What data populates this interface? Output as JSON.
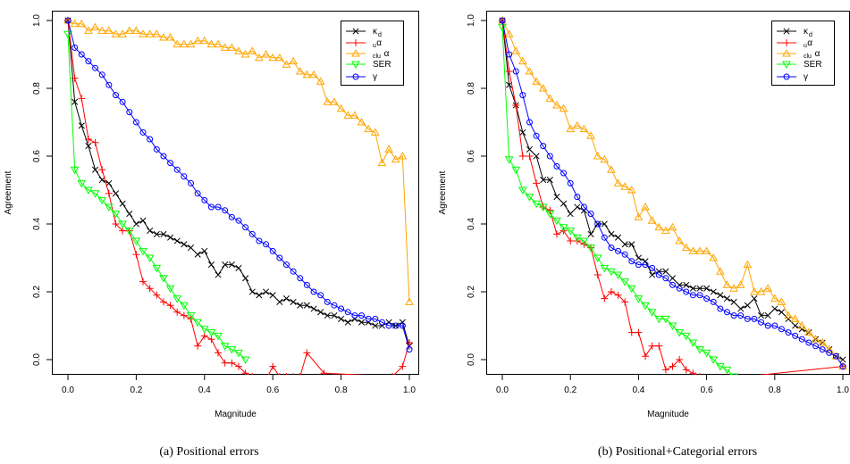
{
  "chart_data": [
    {
      "type": "line",
      "caption": "(a)  Positional errors",
      "xlabel": "Magnitude",
      "ylabel": "Agreement",
      "xlim": [
        0,
        1
      ],
      "ylim": [
        0,
        1
      ],
      "xticks": [
        "0.0",
        "0.2",
        "0.4",
        "0.6",
        "0.8",
        "1.0"
      ],
      "yticks": [
        "0.0",
        "0.2",
        "0.4",
        "0.6",
        "0.8",
        "1.0"
      ],
      "legend_position": "top-right",
      "series": [
        {
          "key": "kd",
          "color": "#000000",
          "marker": "x",
          "x": [
            0.0,
            0.02,
            0.04,
            0.06,
            0.08,
            0.1,
            0.12,
            0.14,
            0.16,
            0.18,
            0.2,
            0.22,
            0.24,
            0.26,
            0.28,
            0.3,
            0.32,
            0.34,
            0.36,
            0.38,
            0.4,
            0.42,
            0.44,
            0.46,
            0.48,
            0.5,
            0.52,
            0.54,
            0.56,
            0.58,
            0.6,
            0.62,
            0.64,
            0.66,
            0.68,
            0.7,
            0.72,
            0.74,
            0.76,
            0.78,
            0.8,
            0.82,
            0.84,
            0.86,
            0.88,
            0.9,
            0.92,
            0.94,
            0.96,
            0.98,
            1.0
          ],
          "y": [
            1.0,
            0.76,
            0.69,
            0.63,
            0.56,
            0.53,
            0.52,
            0.49,
            0.46,
            0.43,
            0.4,
            0.41,
            0.38,
            0.37,
            0.37,
            0.36,
            0.35,
            0.34,
            0.33,
            0.31,
            0.32,
            0.28,
            0.25,
            0.28,
            0.28,
            0.27,
            0.24,
            0.2,
            0.19,
            0.2,
            0.19,
            0.17,
            0.18,
            0.17,
            0.16,
            0.16,
            0.15,
            0.14,
            0.13,
            0.13,
            0.12,
            0.11,
            0.12,
            0.11,
            0.11,
            0.1,
            0.1,
            0.11,
            0.1,
            0.11,
            0.04
          ]
        },
        {
          "key": "ua",
          "color": "#ff0000",
          "marker": "+",
          "x": [
            0.0,
            0.02,
            0.04,
            0.06,
            0.08,
            0.1,
            0.12,
            0.14,
            0.16,
            0.18,
            0.2,
            0.22,
            0.24,
            0.26,
            0.28,
            0.3,
            0.32,
            0.34,
            0.36,
            0.38,
            0.4,
            0.42,
            0.44,
            0.46,
            0.48,
            0.5,
            0.52,
            0.54,
            0.56,
            0.58,
            0.6,
            0.62,
            0.64,
            0.66,
            0.68,
            0.7,
            0.75,
            0.95,
            0.98,
            1.0
          ],
          "y": [
            1.0,
            0.83,
            0.77,
            0.65,
            0.64,
            0.56,
            0.49,
            0.4,
            0.38,
            0.38,
            0.31,
            0.23,
            0.21,
            0.19,
            0.17,
            0.16,
            0.14,
            0.13,
            0.12,
            0.04,
            0.07,
            0.06,
            0.02,
            -0.01,
            -0.01,
            -0.02,
            -0.04,
            -0.05,
            -0.06,
            -0.06,
            -0.02,
            -0.05,
            -0.05,
            -0.05,
            -0.05,
            0.02,
            -0.04,
            -0.05,
            -0.02,
            0.05
          ]
        },
        {
          "key": "clua",
          "color": "#ffa500",
          "marker": "triangle-up",
          "x": [
            0.0,
            0.02,
            0.04,
            0.06,
            0.08,
            0.1,
            0.12,
            0.14,
            0.16,
            0.18,
            0.2,
            0.22,
            0.24,
            0.26,
            0.28,
            0.3,
            0.32,
            0.34,
            0.36,
            0.38,
            0.4,
            0.42,
            0.44,
            0.46,
            0.48,
            0.5,
            0.52,
            0.54,
            0.56,
            0.58,
            0.6,
            0.62,
            0.64,
            0.66,
            0.68,
            0.7,
            0.72,
            0.74,
            0.76,
            0.78,
            0.8,
            0.82,
            0.84,
            0.86,
            0.88,
            0.9,
            0.92,
            0.94,
            0.96,
            0.98,
            1.0
          ],
          "y": [
            1.0,
            0.99,
            0.99,
            0.97,
            0.98,
            0.97,
            0.97,
            0.96,
            0.96,
            0.97,
            0.97,
            0.96,
            0.96,
            0.96,
            0.95,
            0.95,
            0.93,
            0.93,
            0.93,
            0.94,
            0.94,
            0.93,
            0.93,
            0.92,
            0.92,
            0.91,
            0.9,
            0.91,
            0.89,
            0.9,
            0.89,
            0.89,
            0.87,
            0.88,
            0.85,
            0.84,
            0.84,
            0.82,
            0.76,
            0.76,
            0.74,
            0.72,
            0.72,
            0.7,
            0.68,
            0.67,
            0.58,
            0.62,
            0.59,
            0.6,
            0.17
          ]
        },
        {
          "key": "ser",
          "color": "#00ff00",
          "marker": "triangle-down",
          "x": [
            0.0,
            0.02,
            0.04,
            0.06,
            0.08,
            0.1,
            0.12,
            0.14,
            0.16,
            0.18,
            0.2,
            0.22,
            0.24,
            0.26,
            0.28,
            0.3,
            0.32,
            0.34,
            0.36,
            0.38,
            0.4,
            0.42,
            0.44,
            0.46,
            0.48,
            0.5,
            0.52
          ],
          "y": [
            0.96,
            0.56,
            0.52,
            0.5,
            0.49,
            0.47,
            0.45,
            0.43,
            0.4,
            0.38,
            0.35,
            0.32,
            0.3,
            0.27,
            0.24,
            0.21,
            0.18,
            0.16,
            0.13,
            0.11,
            0.09,
            0.08,
            0.07,
            0.04,
            0.03,
            0.02,
            0.0
          ]
        },
        {
          "key": "gamma",
          "color": "#0000ff",
          "marker": "circle",
          "x": [
            0.0,
            0.02,
            0.04,
            0.06,
            0.08,
            0.1,
            0.12,
            0.14,
            0.16,
            0.18,
            0.2,
            0.22,
            0.24,
            0.26,
            0.28,
            0.3,
            0.32,
            0.34,
            0.36,
            0.38,
            0.4,
            0.42,
            0.44,
            0.46,
            0.48,
            0.5,
            0.52,
            0.54,
            0.56,
            0.58,
            0.6,
            0.62,
            0.64,
            0.66,
            0.68,
            0.7,
            0.72,
            0.74,
            0.76,
            0.78,
            0.8,
            0.82,
            0.84,
            0.86,
            0.88,
            0.9,
            0.92,
            0.94,
            0.96,
            0.98,
            1.0
          ],
          "y": [
            1.0,
            0.92,
            0.9,
            0.88,
            0.86,
            0.84,
            0.81,
            0.78,
            0.76,
            0.73,
            0.7,
            0.67,
            0.65,
            0.62,
            0.6,
            0.58,
            0.56,
            0.54,
            0.52,
            0.49,
            0.47,
            0.45,
            0.45,
            0.44,
            0.42,
            0.41,
            0.39,
            0.37,
            0.35,
            0.34,
            0.32,
            0.3,
            0.28,
            0.26,
            0.24,
            0.22,
            0.2,
            0.19,
            0.17,
            0.16,
            0.15,
            0.14,
            0.13,
            0.13,
            0.12,
            0.12,
            0.11,
            0.1,
            0.1,
            0.1,
            0.03
          ]
        }
      ]
    },
    {
      "type": "line",
      "caption": "(b)  Positional+Categorial errors",
      "xlabel": "Magnitude",
      "ylabel": "Agreement",
      "xlim": [
        0,
        1
      ],
      "ylim": [
        0,
        1
      ],
      "xticks": [
        "0.0",
        "0.2",
        "0.4",
        "0.6",
        "0.8",
        "1.0"
      ],
      "yticks": [
        "0.0",
        "0.2",
        "0.4",
        "0.6",
        "0.8",
        "1.0"
      ],
      "legend_position": "top-right",
      "series": [
        {
          "key": "kd",
          "color": "#000000",
          "marker": "x",
          "x": [
            0.0,
            0.02,
            0.04,
            0.06,
            0.08,
            0.1,
            0.12,
            0.14,
            0.16,
            0.18,
            0.2,
            0.22,
            0.24,
            0.26,
            0.28,
            0.3,
            0.32,
            0.34,
            0.36,
            0.38,
            0.4,
            0.42,
            0.44,
            0.46,
            0.48,
            0.5,
            0.52,
            0.54,
            0.56,
            0.58,
            0.6,
            0.62,
            0.64,
            0.66,
            0.68,
            0.7,
            0.72,
            0.74,
            0.76,
            0.78,
            0.8,
            0.82,
            0.84,
            0.86,
            0.88,
            0.9,
            0.92,
            0.94,
            0.96,
            0.98,
            1.0
          ],
          "y": [
            1.0,
            0.81,
            0.75,
            0.67,
            0.62,
            0.6,
            0.53,
            0.53,
            0.48,
            0.46,
            0.43,
            0.45,
            0.44,
            0.37,
            0.4,
            0.4,
            0.37,
            0.36,
            0.34,
            0.34,
            0.3,
            0.29,
            0.25,
            0.26,
            0.26,
            0.24,
            0.22,
            0.22,
            0.21,
            0.21,
            0.21,
            0.2,
            0.19,
            0.18,
            0.17,
            0.15,
            0.16,
            0.18,
            0.13,
            0.13,
            0.15,
            0.14,
            0.12,
            0.1,
            0.09,
            0.08,
            0.06,
            0.05,
            0.03,
            0.01,
            0.0
          ]
        },
        {
          "key": "ua",
          "color": "#ff0000",
          "marker": "+",
          "x": [
            0.0,
            0.02,
            0.04,
            0.06,
            0.08,
            0.1,
            0.12,
            0.14,
            0.16,
            0.18,
            0.2,
            0.22,
            0.24,
            0.26,
            0.28,
            0.3,
            0.32,
            0.34,
            0.36,
            0.38,
            0.4,
            0.42,
            0.44,
            0.46,
            0.48,
            0.5,
            0.52,
            0.54,
            0.56,
            0.58,
            0.6,
            0.62,
            1.0
          ],
          "y": [
            1.0,
            0.85,
            0.75,
            0.6,
            0.6,
            0.52,
            0.45,
            0.44,
            0.37,
            0.38,
            0.35,
            0.35,
            0.34,
            0.33,
            0.25,
            0.18,
            0.2,
            0.19,
            0.17,
            0.08,
            0.08,
            0.01,
            0.04,
            0.04,
            -0.03,
            -0.02,
            0.0,
            -0.03,
            -0.04,
            -0.05,
            -0.06,
            -0.06,
            -0.02
          ]
        },
        {
          "key": "clua",
          "color": "#ffa500",
          "marker": "triangle-up",
          "x": [
            0.0,
            0.02,
            0.04,
            0.06,
            0.08,
            0.1,
            0.12,
            0.14,
            0.16,
            0.18,
            0.2,
            0.22,
            0.24,
            0.26,
            0.28,
            0.3,
            0.32,
            0.34,
            0.36,
            0.38,
            0.4,
            0.42,
            0.44,
            0.46,
            0.48,
            0.5,
            0.52,
            0.54,
            0.56,
            0.58,
            0.6,
            0.62,
            0.64,
            0.66,
            0.68,
            0.7,
            0.72,
            0.74,
            0.76,
            0.78,
            0.8,
            0.82,
            0.84,
            0.86,
            0.88,
            0.9,
            0.92,
            0.94,
            0.96,
            0.98,
            1.0
          ],
          "y": [
            1.0,
            0.96,
            0.91,
            0.88,
            0.85,
            0.82,
            0.8,
            0.77,
            0.75,
            0.74,
            0.68,
            0.69,
            0.68,
            0.66,
            0.6,
            0.59,
            0.56,
            0.52,
            0.51,
            0.5,
            0.42,
            0.45,
            0.41,
            0.39,
            0.38,
            0.39,
            0.35,
            0.33,
            0.32,
            0.32,
            0.32,
            0.3,
            0.26,
            0.22,
            0.21,
            0.22,
            0.28,
            0.2,
            0.2,
            0.21,
            0.18,
            0.17,
            0.13,
            0.12,
            0.1,
            0.08,
            0.06,
            0.05,
            0.03,
            0.01,
            -0.02
          ]
        },
        {
          "key": "ser",
          "color": "#00ff00",
          "marker": "triangle-down",
          "x": [
            0.0,
            0.02,
            0.04,
            0.06,
            0.08,
            0.1,
            0.12,
            0.14,
            0.16,
            0.18,
            0.2,
            0.22,
            0.24,
            0.26,
            0.28,
            0.3,
            0.32,
            0.34,
            0.36,
            0.38,
            0.4,
            0.42,
            0.44,
            0.46,
            0.48,
            0.5,
            0.52,
            0.54,
            0.56,
            0.58,
            0.6,
            0.62,
            0.64,
            0.66,
            0.68
          ],
          "y": [
            0.98,
            0.59,
            0.56,
            0.5,
            0.48,
            0.46,
            0.45,
            0.43,
            0.41,
            0.39,
            0.38,
            0.36,
            0.35,
            0.33,
            0.3,
            0.27,
            0.26,
            0.25,
            0.23,
            0.21,
            0.18,
            0.16,
            0.14,
            0.12,
            0.12,
            0.1,
            0.08,
            0.07,
            0.05,
            0.03,
            0.02,
            0.0,
            -0.02,
            -0.03,
            -0.05
          ]
        },
        {
          "key": "gamma",
          "color": "#0000ff",
          "marker": "circle",
          "x": [
            0.0,
            0.02,
            0.04,
            0.06,
            0.08,
            0.1,
            0.12,
            0.14,
            0.16,
            0.18,
            0.2,
            0.22,
            0.24,
            0.26,
            0.28,
            0.3,
            0.32,
            0.34,
            0.36,
            0.38,
            0.4,
            0.42,
            0.44,
            0.46,
            0.48,
            0.5,
            0.52,
            0.54,
            0.56,
            0.58,
            0.6,
            0.62,
            0.64,
            0.66,
            0.68,
            0.7,
            0.72,
            0.74,
            0.76,
            0.78,
            0.8,
            0.82,
            0.84,
            0.86,
            0.88,
            0.9,
            0.92,
            0.94,
            0.96,
            0.98,
            1.0
          ],
          "y": [
            1.0,
            0.9,
            0.85,
            0.78,
            0.7,
            0.66,
            0.63,
            0.6,
            0.57,
            0.55,
            0.52,
            0.48,
            0.45,
            0.43,
            0.4,
            0.36,
            0.33,
            0.32,
            0.31,
            0.29,
            0.28,
            0.28,
            0.27,
            0.25,
            0.24,
            0.22,
            0.21,
            0.2,
            0.19,
            0.19,
            0.18,
            0.17,
            0.15,
            0.14,
            0.13,
            0.13,
            0.12,
            0.12,
            0.11,
            0.1,
            0.1,
            0.09,
            0.08,
            0.07,
            0.06,
            0.05,
            0.04,
            0.03,
            0.02,
            0.01,
            -0.02
          ]
        }
      ]
    }
  ],
  "legend": [
    {
      "key": "kd",
      "main": "κ",
      "sub": "d",
      "pre": ""
    },
    {
      "key": "ua",
      "main": "α",
      "sub": "",
      "pre": "u"
    },
    {
      "key": "clua",
      "main": "α",
      "sub": "",
      "pre": "clu"
    },
    {
      "key": "ser",
      "main": "SER",
      "sub": "",
      "pre": ""
    },
    {
      "key": "gamma",
      "main": "γ",
      "sub": "",
      "pre": ""
    }
  ]
}
